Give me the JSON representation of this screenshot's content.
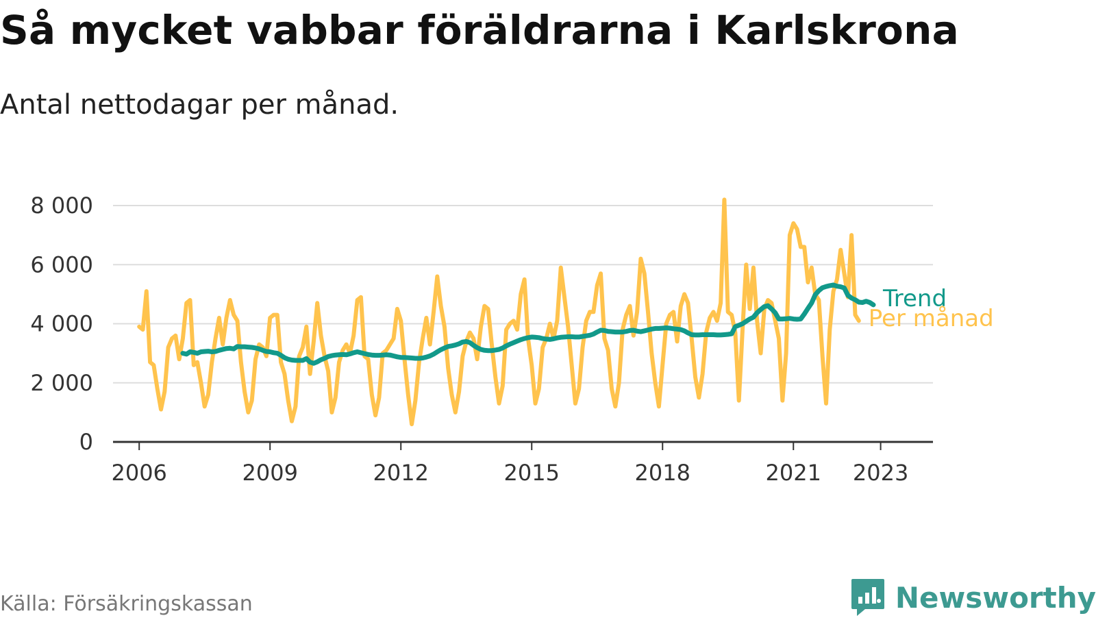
{
  "title": "Så mycket vabbar föräldrarna i Karlskrona",
  "subtitle": "Antal nettodagar per månad.",
  "source": "Källa: Försäkringskassan",
  "brand": "Newsworthy",
  "colors": {
    "trend": "#12998a",
    "monthly": "#ffc34d",
    "grid": "#dddddd",
    "axis": "#333333",
    "brand": "#3d9a91"
  },
  "chart_data": {
    "type": "line",
    "title": "Så mycket vabbar föräldrarna i Karlskrona",
    "subtitle": "Antal nettodagar per månad.",
    "xlabel": "",
    "ylabel": "",
    "xlim": [
      2005.4,
      2024.2
    ],
    "ylim": [
      0,
      8000
    ],
    "y_ticks": [
      {
        "value": 0,
        "label": "0"
      },
      {
        "value": 2000,
        "label": "2 000"
      },
      {
        "value": 4000,
        "label": "4 000"
      },
      {
        "value": 6000,
        "label": "6 000"
      },
      {
        "value": 8000,
        "label": "8 000"
      }
    ],
    "x_ticks": [
      {
        "value": 2006,
        "label": "2006"
      },
      {
        "value": 2009,
        "label": "2009"
      },
      {
        "value": 2012,
        "label": "2012"
      },
      {
        "value": 2015,
        "label": "2015"
      },
      {
        "value": 2018,
        "label": "2018"
      },
      {
        "value": 2021,
        "label": "2021"
      },
      {
        "value": 2023,
        "label": "2023"
      }
    ],
    "grid": true,
    "series": [
      {
        "name": "Per månad",
        "start": 2006.0,
        "step_months": 1,
        "values": [
          3900,
          3800,
          5100,
          2700,
          2600,
          1800,
          1100,
          1700,
          3200,
          3500,
          3600,
          2800,
          3500,
          4700,
          4800,
          2600,
          2700,
          2000,
          1200,
          1600,
          2700,
          3500,
          4200,
          3300,
          4200,
          4800,
          4300,
          4100,
          2700,
          1700,
          1000,
          1400,
          2800,
          3300,
          3200,
          2900,
          4200,
          4300,
          4300,
          2700,
          2300,
          1400,
          700,
          1200,
          2900,
          3200,
          3900,
          2300,
          3400,
          4700,
          3600,
          2900,
          2400,
          1000,
          1500,
          2700,
          3100,
          3300,
          3000,
          3600,
          4800,
          4900,
          2900,
          2800,
          1600,
          900,
          1500,
          3000,
          3100,
          3300,
          3500,
          4500,
          4100,
          2800,
          1600,
          600,
          1400,
          2700,
          3500,
          4200,
          3300,
          4400,
          5600,
          4600,
          3900,
          2500,
          1600,
          1000,
          1700,
          2900,
          3400,
          3700,
          3500,
          2800,
          3900,
          4600,
          4500,
          3300,
          2200,
          1300,
          1900,
          3800,
          4000,
          4100,
          3800,
          5000,
          5500,
          3500,
          2600,
          1300,
          1800,
          3200,
          3500,
          4000,
          3500,
          4100,
          5900,
          4900,
          3900,
          2600,
          1300,
          1800,
          3200,
          4100,
          4400,
          4400,
          5300,
          5700,
          3500,
          3100,
          1800,
          1200,
          2000,
          3800,
          4300,
          4600,
          3600,
          4400,
          6200,
          5700,
          4400,
          3000,
          2000,
          1200,
          2600,
          4000,
          4300,
          4400,
          3400,
          4600,
          5000,
          4700,
          3500,
          2200,
          1500,
          2300,
          3700,
          4200,
          4400,
          4100,
          4700,
          8200,
          4400,
          4300,
          3700,
          1400,
          3800,
          6000,
          4500,
          5900,
          4100,
          3000,
          4500,
          4800,
          4700,
          4100,
          3500,
          1400,
          3000,
          7000,
          7400,
          7200,
          6600,
          6600,
          5400,
          5900,
          5000,
          4800,
          2900,
          1300,
          3800,
          5100,
          5500,
          6500,
          5700,
          4900,
          7000,
          4300,
          4100
        ]
      },
      {
        "name": "Trend",
        "start": 2007.0,
        "step_months": 1,
        "values": [
          3000,
          2970,
          3050,
          3030,
          3000,
          3050,
          3060,
          3070,
          3050,
          3060,
          3100,
          3130,
          3160,
          3170,
          3150,
          3230,
          3220,
          3220,
          3210,
          3200,
          3180,
          3150,
          3100,
          3060,
          3050,
          3020,
          3000,
          2930,
          2850,
          2800,
          2770,
          2760,
          2760,
          2760,
          2820,
          2700,
          2660,
          2710,
          2780,
          2830,
          2890,
          2920,
          2940,
          2950,
          2960,
          2950,
          2980,
          3020,
          3050,
          3020,
          2990,
          2960,
          2940,
          2930,
          2930,
          2940,
          2950,
          2940,
          2910,
          2880,
          2860,
          2860,
          2850,
          2840,
          2830,
          2830,
          2840,
          2870,
          2910,
          2970,
          3050,
          3120,
          3180,
          3230,
          3250,
          3280,
          3320,
          3380,
          3400,
          3360,
          3270,
          3190,
          3130,
          3100,
          3090,
          3090,
          3110,
          3130,
          3180,
          3250,
          3310,
          3360,
          3410,
          3460,
          3500,
          3530,
          3550,
          3540,
          3530,
          3500,
          3480,
          3470,
          3490,
          3520,
          3540,
          3550,
          3560,
          3560,
          3550,
          3550,
          3570,
          3590,
          3610,
          3650,
          3720,
          3780,
          3770,
          3740,
          3730,
          3720,
          3720,
          3720,
          3740,
          3770,
          3780,
          3750,
          3730,
          3760,
          3790,
          3820,
          3840,
          3840,
          3850,
          3860,
          3850,
          3830,
          3820,
          3800,
          3760,
          3690,
          3630,
          3620,
          3620,
          3630,
          3630,
          3630,
          3630,
          3620,
          3620,
          3630,
          3640,
          3660,
          3900,
          3950,
          4000,
          4080,
          4160,
          4220,
          4370,
          4480,
          4580,
          4610,
          4500,
          4370,
          4160,
          4160,
          4170,
          4180,
          4160,
          4150,
          4160,
          4330,
          4520,
          4700,
          4980,
          5120,
          5220,
          5260,
          5290,
          5310,
          5270,
          5250,
          5210,
          4960,
          4870,
          4810,
          4730,
          4720,
          4760,
          4720,
          4640
        ]
      }
    ]
  }
}
